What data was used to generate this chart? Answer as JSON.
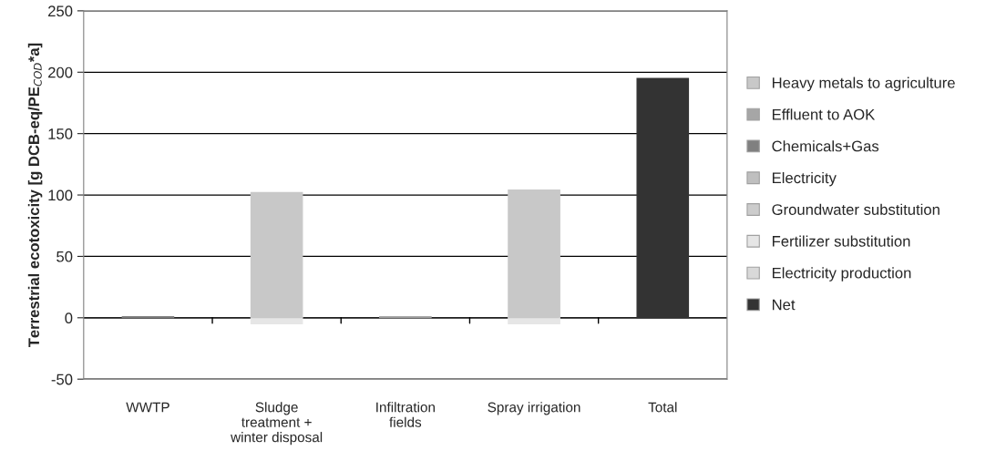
{
  "chart_data": {
    "type": "bar",
    "stacked": true,
    "ylabel": "Terrestrial ecotoxicity [g DCB-eq/PE$_{COD}$*a]",
    "categories": [
      "WWTP",
      "Sludge\ntreatment +\nwinter disposal",
      "Infiltration\nfields",
      "Spray irrigation",
      "Total"
    ],
    "series": [
      {
        "name": "Net",
        "color": "#333333",
        "values": [
          null,
          null,
          null,
          null,
          195
        ]
      },
      {
        "name": "Electricity production",
        "color": "#d9d9d9",
        "values": [
          null,
          null,
          null,
          null,
          null
        ]
      },
      {
        "name": "Fertilizer substitution",
        "color": "#e6e6e6",
        "values": [
          null,
          -5,
          null,
          -5,
          null
        ]
      },
      {
        "name": "Groundwater substitution",
        "color": "#cccccc",
        "values": [
          null,
          null,
          null,
          null,
          null
        ]
      },
      {
        "name": "Electricity",
        "color": "#bfbfbf",
        "values": [
          null,
          null,
          null,
          null,
          null
        ]
      },
      {
        "name": "Chemicals+Gas",
        "color": "#808080",
        "values": [
          1,
          null,
          null,
          null,
          null
        ]
      },
      {
        "name": "Effluent to AOK",
        "color": "#a6a6a6",
        "values": [
          null,
          null,
          1,
          null,
          null
        ]
      },
      {
        "name": "Heavy metals to agriculture",
        "color": "#c8c8c8",
        "values": [
          null,
          102,
          null,
          104,
          null
        ]
      }
    ],
    "ylim": [
      -50,
      250
    ],
    "yticks": [
      -50,
      0,
      50,
      100,
      150,
      200,
      250
    ],
    "grid": "y",
    "legend": "right"
  }
}
